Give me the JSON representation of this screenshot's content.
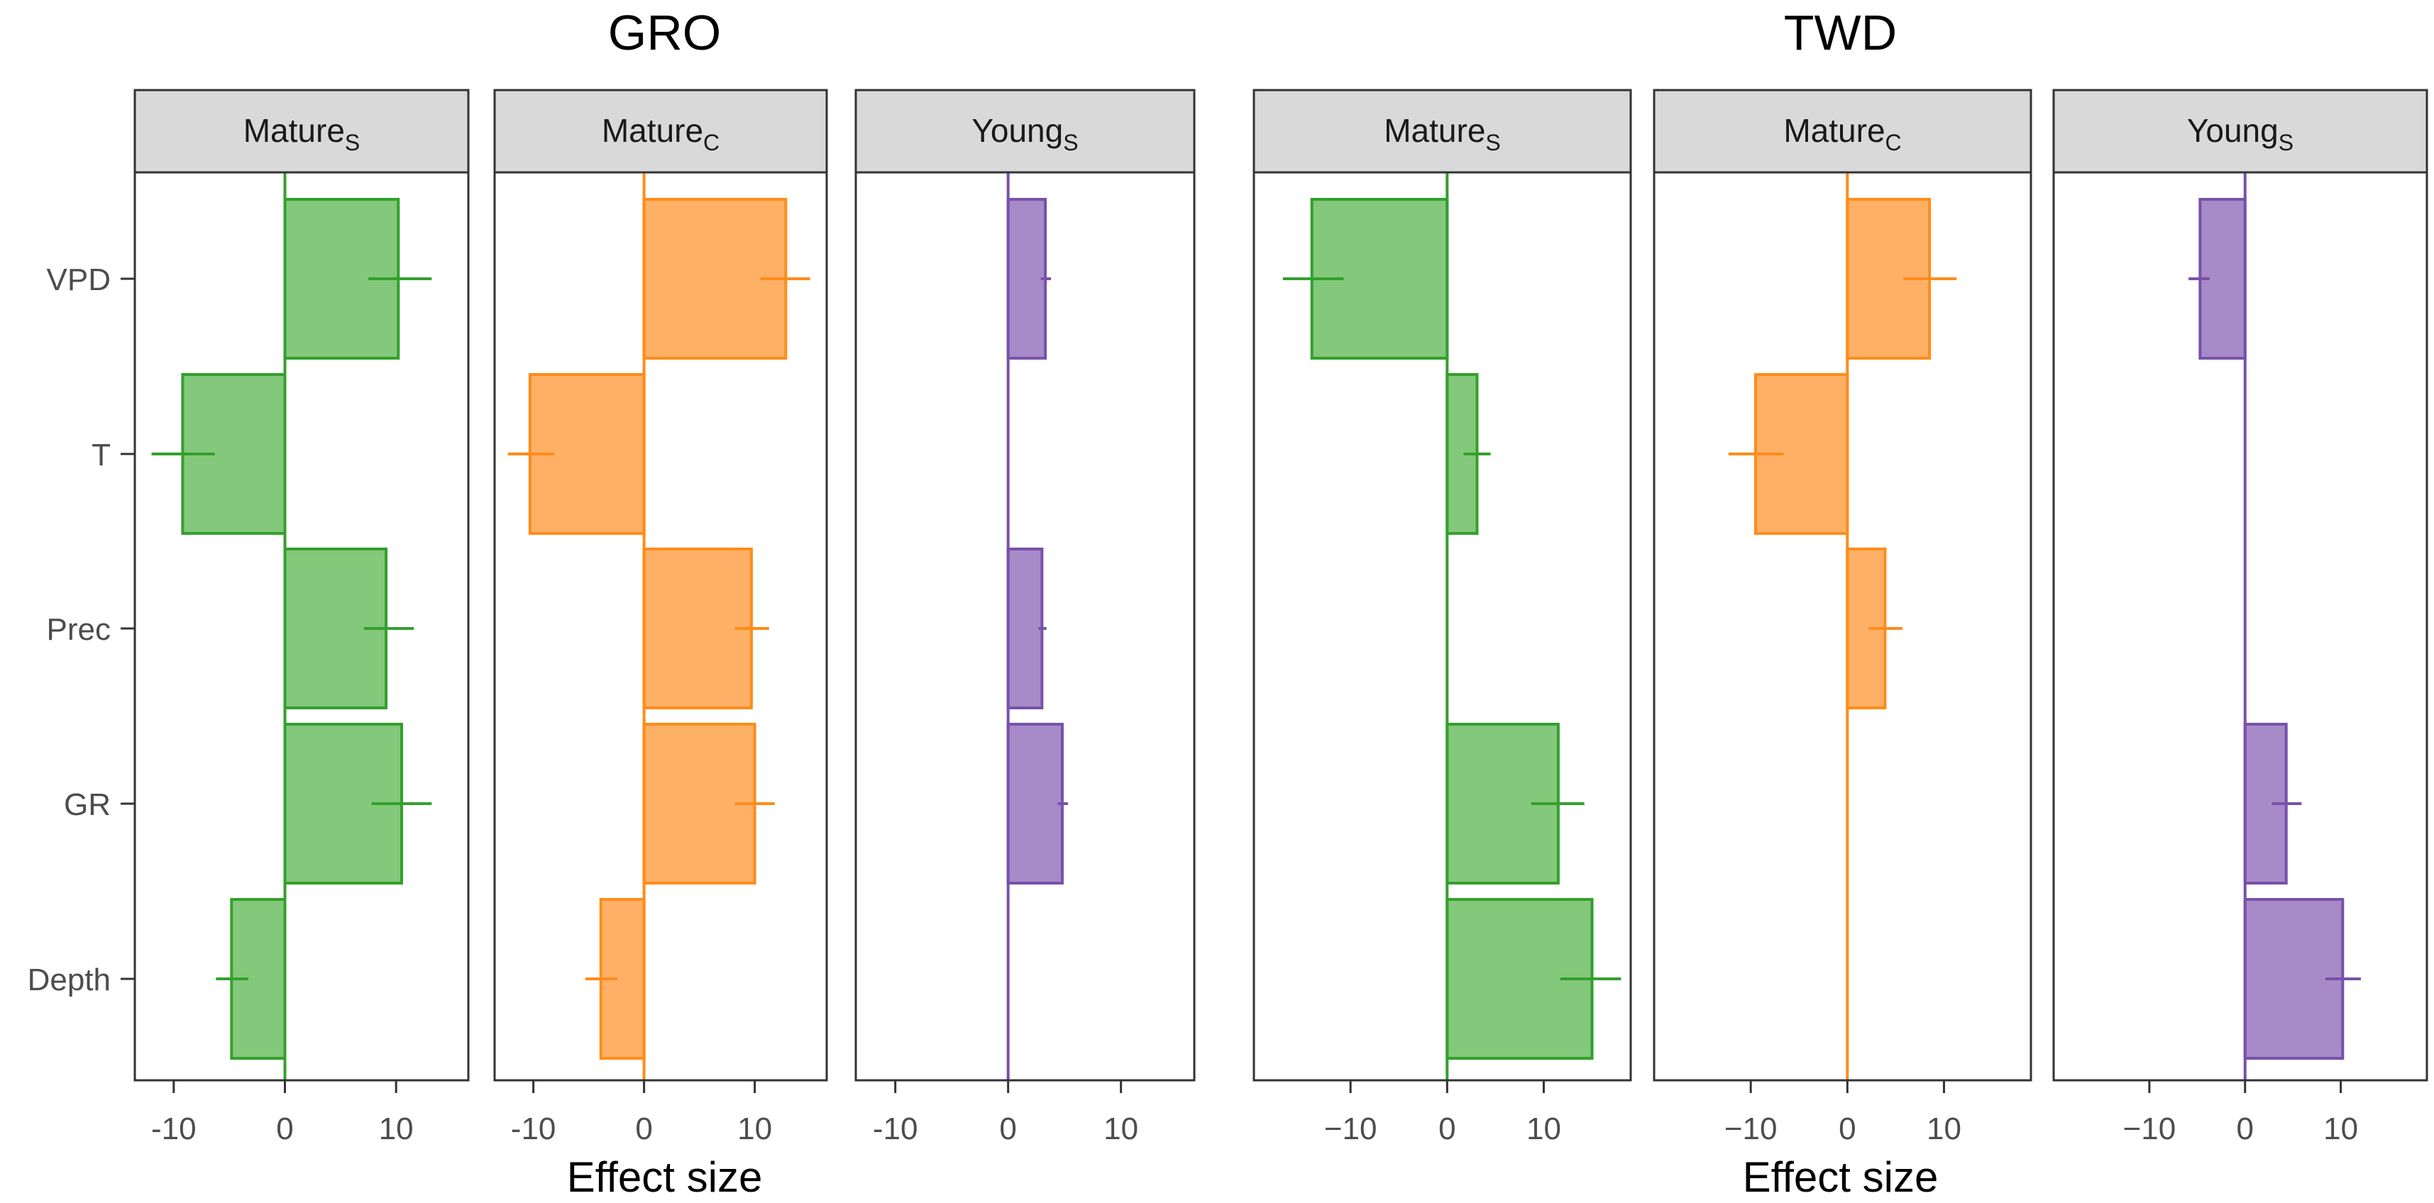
{
  "chart_data": {
    "type": "bar",
    "orientation": "horizontal",
    "categories": [
      "VPD",
      "T",
      "Prec",
      "GR",
      "Depth"
    ],
    "xlabel": "Effect size",
    "groups": [
      {
        "title": "GRO",
        "xlim": [
          -13.5,
          16.5
        ],
        "ticks": [
          -10,
          0,
          10
        ],
        "tick_labels": [
          "-10",
          "0",
          "10"
        ],
        "panels": [
          {
            "label": "Mature",
            "subscript": "S",
            "color": "#33a02c",
            "fill": "#84c87b",
            "series": [
              {
                "category": "VPD",
                "value": 10.2,
                "ci": [
                  7.5,
                  13.2
                ]
              },
              {
                "category": "T",
                "value": -9.2,
                "ci": [
                  -12.0,
                  -6.3
                ]
              },
              {
                "category": "Prec",
                "value": 9.1,
                "ci": [
                  7.1,
                  11.6
                ]
              },
              {
                "category": "GR",
                "value": 10.5,
                "ci": [
                  7.8,
                  13.2
                ]
              },
              {
                "category": "Depth",
                "value": -4.8,
                "ci": [
                  -6.2,
                  -3.3
                ]
              }
            ]
          },
          {
            "label": "Mature",
            "subscript": "C",
            "color": "#ff8c1a",
            "fill": "#fdb066",
            "series": [
              {
                "category": "VPD",
                "value": 12.8,
                "ci": [
                  10.5,
                  15.0
                ]
              },
              {
                "category": "T",
                "value": -10.3,
                "ci": [
                  -12.3,
                  -8.1
                ]
              },
              {
                "category": "Prec",
                "value": 9.7,
                "ci": [
                  8.2,
                  11.3
                ]
              },
              {
                "category": "GR",
                "value": 10.0,
                "ci": [
                  8.2,
                  11.8
                ]
              },
              {
                "category": "Depth",
                "value": -3.9,
                "ci": [
                  -5.3,
                  -2.4
                ]
              }
            ]
          },
          {
            "label": "Young",
            "subscript": "S",
            "color": "#7851a9",
            "fill": "#a68bc8",
            "series": [
              {
                "category": "VPD",
                "value": 3.3,
                "ci": [
                  2.9,
                  3.8
                ]
              },
              {
                "category": "T",
                "value": null,
                "ci": null
              },
              {
                "category": "Prec",
                "value": 3.0,
                "ci": [
                  2.7,
                  3.4
                ]
              },
              {
                "category": "GR",
                "value": 4.8,
                "ci": [
                  4.4,
                  5.3
                ]
              },
              {
                "category": "Depth",
                "value": null,
                "ci": null
              }
            ]
          }
        ]
      },
      {
        "title": "TWD",
        "xlim": [
          -20,
          19
        ],
        "ticks": [
          -10,
          0,
          10
        ],
        "tick_labels": [
          "−10",
          "0",
          "10"
        ],
        "panels": [
          {
            "label": "Mature",
            "subscript": "S",
            "color": "#33a02c",
            "fill": "#84c87b",
            "series": [
              {
                "category": "VPD",
                "value": -14.0,
                "ci": [
                  -17.0,
                  -10.7
                ]
              },
              {
                "category": "T",
                "value": 3.1,
                "ci": [
                  1.7,
                  4.5
                ]
              },
              {
                "category": "Prec",
                "value": null,
                "ci": null
              },
              {
                "category": "GR",
                "value": 11.5,
                "ci": [
                  8.7,
                  14.2
                ]
              },
              {
                "category": "Depth",
                "value": 15.0,
                "ci": [
                  11.7,
                  18.0
                ]
              }
            ]
          },
          {
            "label": "Mature",
            "subscript": "C",
            "color": "#ff8c1a",
            "fill": "#fdb066",
            "series": [
              {
                "category": "VPD",
                "value": 8.5,
                "ci": [
                  5.8,
                  11.3
                ]
              },
              {
                "category": "T",
                "value": -9.5,
                "ci": [
                  -12.3,
                  -6.6
                ]
              },
              {
                "category": "Prec",
                "value": 3.9,
                "ci": [
                  2.2,
                  5.7
                ]
              },
              {
                "category": "GR",
                "value": null,
                "ci": null
              },
              {
                "category": "Depth",
                "value": null,
                "ci": null
              }
            ]
          },
          {
            "label": "Young",
            "subscript": "S",
            "color": "#7851a9",
            "fill": "#a68bc8",
            "series": [
              {
                "category": "VPD",
                "value": -4.7,
                "ci": [
                  -5.9,
                  -3.7
                ]
              },
              {
                "category": "T",
                "value": null,
                "ci": null
              },
              {
                "category": "Prec",
                "value": null,
                "ci": null
              },
              {
                "category": "GR",
                "value": 4.3,
                "ci": [
                  2.8,
                  5.9
                ]
              },
              {
                "category": "Depth",
                "value": 10.2,
                "ci": [
                  8.4,
                  12.1
                ]
              }
            ]
          }
        ]
      }
    ]
  }
}
